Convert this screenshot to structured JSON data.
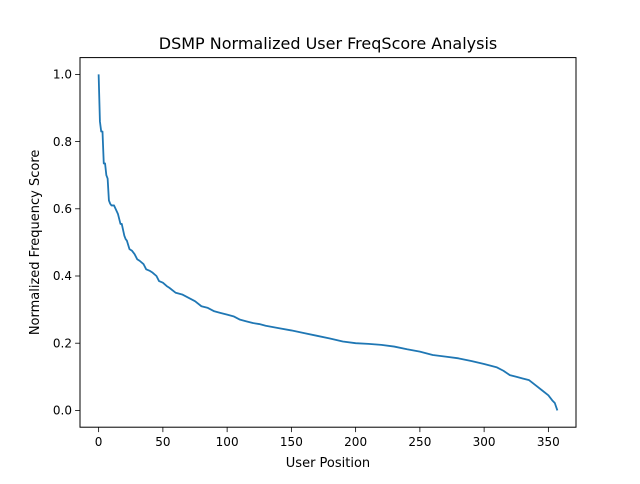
{
  "chart_data": {
    "type": "line",
    "title": "DSMP Normalized User FreqScore Analysis",
    "xlabel": "User Position",
    "ylabel": "Normalized Frequency Score",
    "xlim": [
      -14.5,
      371.5
    ],
    "ylim": [
      -0.05,
      1.05
    ],
    "xticks": [
      0,
      50,
      100,
      150,
      200,
      250,
      300,
      350
    ],
    "yticks": [
      0.0,
      0.2,
      0.4,
      0.6,
      0.8,
      1.0
    ],
    "xtick_labels": [
      "0",
      "50",
      "100",
      "150",
      "200",
      "250",
      "300",
      "350"
    ],
    "ytick_labels": [
      "0.0",
      "0.2",
      "0.4",
      "0.6",
      "0.8",
      "1.0"
    ],
    "grid": false,
    "series": [
      {
        "color": "#1f77b4",
        "x": [
          0,
          1,
          2,
          3,
          4,
          5,
          6,
          7,
          8,
          9,
          10,
          12,
          15,
          17,
          18,
          20,
          21,
          22,
          24,
          26,
          28,
          30,
          32,
          35,
          37,
          40,
          42,
          45,
          47,
          50,
          53,
          55,
          60,
          65,
          70,
          75,
          80,
          85,
          90,
          95,
          100,
          105,
          110,
          115,
          120,
          125,
          130,
          140,
          150,
          160,
          170,
          180,
          190,
          200,
          210,
          220,
          230,
          240,
          250,
          260,
          270,
          280,
          290,
          300,
          310,
          315,
          320,
          325,
          330,
          335,
          340,
          345,
          350,
          353,
          355,
          357
        ],
        "y": [
          1.0,
          0.86,
          0.83,
          0.83,
          0.735,
          0.735,
          0.7,
          0.69,
          0.625,
          0.615,
          0.61,
          0.61,
          0.585,
          0.555,
          0.555,
          0.52,
          0.51,
          0.505,
          0.48,
          0.475,
          0.465,
          0.45,
          0.445,
          0.435,
          0.42,
          0.415,
          0.41,
          0.4,
          0.385,
          0.38,
          0.37,
          0.365,
          0.35,
          0.345,
          0.335,
          0.325,
          0.31,
          0.305,
          0.295,
          0.29,
          0.285,
          0.28,
          0.27,
          0.265,
          0.26,
          0.257,
          0.252,
          0.245,
          0.238,
          0.23,
          0.222,
          0.214,
          0.205,
          0.2,
          0.198,
          0.195,
          0.19,
          0.182,
          0.175,
          0.165,
          0.16,
          0.155,
          0.147,
          0.138,
          0.128,
          0.118,
          0.105,
          0.1,
          0.095,
          0.09,
          0.075,
          0.06,
          0.045,
          0.03,
          0.022,
          0.0
        ]
      }
    ]
  }
}
